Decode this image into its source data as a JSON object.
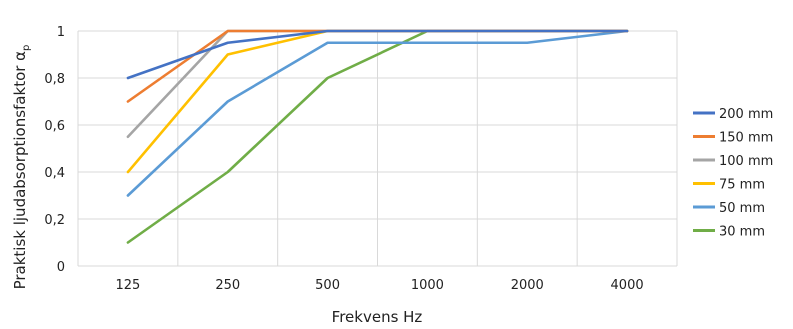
{
  "chart_data": {
    "type": "line",
    "categories": [
      "125",
      "250",
      "500",
      "1000",
      "2000",
      "4000"
    ],
    "xlabel": "Frekvens Hz",
    "ylabel": "Praktisk ljudabsorptionsfaktor α",
    "ylabel_subscript": "p",
    "ylim": [
      0,
      1
    ],
    "yticks": [
      "0",
      "0,2",
      "0,4",
      "0,6",
      "0,8",
      "1"
    ],
    "grid": true,
    "legend_position": "right",
    "series": [
      {
        "name": "200 mm",
        "color": "#4472C4",
        "values": [
          0.8,
          0.95,
          1.0,
          1.0,
          1.0,
          1.0
        ]
      },
      {
        "name": "150 mm",
        "color": "#ED7D31",
        "values": [
          0.7,
          1.0,
          1.0,
          1.0,
          1.0,
          1.0
        ]
      },
      {
        "name": "100 mm",
        "color": "#A5A5A5",
        "values": [
          0.55,
          1.0,
          1.0,
          1.0,
          1.0,
          1.0
        ]
      },
      {
        "name": "75 mm",
        "color": "#FFC000",
        "values": [
          0.4,
          0.9,
          1.0,
          1.0,
          1.0,
          1.0
        ]
      },
      {
        "name": "50 mm",
        "color": "#5B9BD5",
        "values": [
          0.3,
          0.7,
          0.95,
          0.95,
          0.95,
          1.0
        ]
      },
      {
        "name": "30 mm",
        "color": "#70AD47",
        "values": [
          0.1,
          0.4,
          0.8,
          1.0,
          1.0,
          1.0
        ]
      }
    ]
  }
}
